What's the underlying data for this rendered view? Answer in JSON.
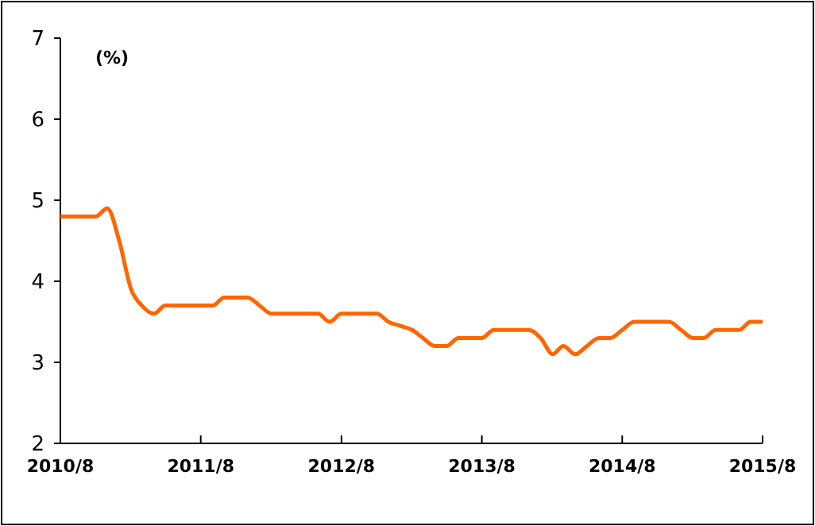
{
  "chart_data": {
    "type": "line",
    "ylabel": "(%)",
    "x": [
      "2010-08",
      "2010-09",
      "2010-10",
      "2010-11",
      "2010-12",
      "2011-01",
      "2011-02",
      "2011-03",
      "2011-04",
      "2011-05",
      "2011-06",
      "2011-07",
      "2011-08",
      "2011-09",
      "2011-10",
      "2011-11",
      "2011-12",
      "2012-01",
      "2012-02",
      "2012-03",
      "2012-04",
      "2012-05",
      "2012-06",
      "2012-07",
      "2012-08",
      "2012-09",
      "2012-10",
      "2012-11",
      "2012-12",
      "2013-01",
      "2013-02",
      "2013-03",
      "2013-04",
      "2013-05",
      "2013-06",
      "2013-07",
      "2013-08",
      "2013-09",
      "2013-10",
      "2013-11",
      "2013-12",
      "2014-01",
      "2014-02",
      "2014-03",
      "2014-04",
      "2014-05",
      "2014-06",
      "2014-07",
      "2014-08",
      "2014-09",
      "2014-10",
      "2014-11",
      "2014-12",
      "2015-01",
      "2015-02",
      "2015-03",
      "2015-04",
      "2015-05",
      "2015-06",
      "2015-07",
      "2015-08"
    ],
    "series": [
      {
        "color": "#ff6600",
        "values": [
          4.8,
          4.8,
          4.8,
          4.8,
          4.9,
          4.5,
          3.9,
          3.7,
          3.6,
          3.7,
          3.7,
          3.7,
          3.7,
          3.7,
          3.8,
          3.8,
          3.8,
          3.7,
          3.6,
          3.6,
          3.6,
          3.6,
          3.6,
          3.5,
          3.6,
          3.6,
          3.6,
          3.6,
          3.5,
          3.45,
          3.4,
          3.3,
          3.2,
          3.2,
          3.3,
          3.3,
          3.3,
          3.4,
          3.4,
          3.4,
          3.4,
          3.3,
          3.1,
          3.2,
          3.1,
          3.2,
          3.3,
          3.3,
          3.4,
          3.5,
          3.5,
          3.5,
          3.5,
          3.4,
          3.3,
          3.3,
          3.4,
          3.4,
          3.4,
          3.5,
          3.5
        ]
      }
    ],
    "xlim": [
      "2010-08",
      "2015-08"
    ],
    "xticks": [
      {
        "value": "2010-08",
        "label": "2010/8"
      },
      {
        "value": "2011-08",
        "label": "2011/8"
      },
      {
        "value": "2012-08",
        "label": "2012/8"
      },
      {
        "value": "2013-08",
        "label": "2013/8"
      },
      {
        "value": "2014-08",
        "label": "2014/8"
      },
      {
        "value": "2015-08",
        "label": "2015/8"
      }
    ],
    "ylim": [
      2,
      7
    ],
    "yticks": [
      2,
      3,
      4,
      5,
      6,
      7
    ],
    "grid": false,
    "marker": "none",
    "line_style": "solid"
  }
}
